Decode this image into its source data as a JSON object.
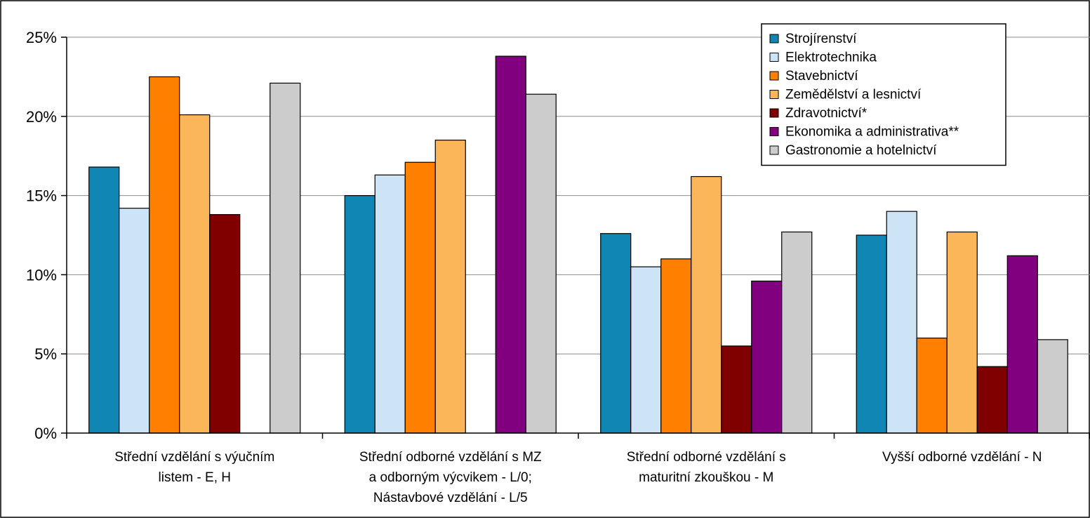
{
  "chart_data": {
    "type": "bar",
    "title": "",
    "xlabel": "",
    "ylabel": "",
    "ylim": [
      0,
      25
    ],
    "yticks": [
      "0%",
      "5%",
      "10%",
      "15%",
      "20%",
      "25%"
    ],
    "grid": true,
    "legend_position": "top-right",
    "categories": [
      [
        "Střední vzdělání s výučním",
        "listem - E, H"
      ],
      [
        "Střední odborné vzdělání s MZ",
        "a odborným výcvikem - L/0;",
        "Nástavbové vzdělání - L/5"
      ],
      [
        "Střední odborné vzdělání s",
        "maturitní zkouškou - M"
      ],
      [
        "Vyšší odborné vzdělání - N"
      ]
    ],
    "series": [
      {
        "name": "Strojírenství",
        "color": "#0f86b3",
        "values": [
          16.8,
          15.0,
          12.6,
          12.5
        ]
      },
      {
        "name": "Elektrotechnika",
        "color": "#cce4f6",
        "values": [
          14.2,
          16.3,
          10.5,
          14.0
        ]
      },
      {
        "name": "Stavebnictví",
        "color": "#ff8000",
        "values": [
          22.5,
          17.1,
          11.0,
          6.0
        ]
      },
      {
        "name": "Zemědělství a lesnictví",
        "color": "#fbb65a",
        "values": [
          20.1,
          18.5,
          16.2,
          12.7
        ]
      },
      {
        "name": "Zdravotnictví*",
        "color": "#800000",
        "values": [
          13.8,
          null,
          5.5,
          4.2
        ]
      },
      {
        "name": "Ekonomika a administrativa**",
        "color": "#800080",
        "values": [
          null,
          23.8,
          9.6,
          11.2
        ]
      },
      {
        "name": "Gastronomie a hotelnictví",
        "color": "#cccccc",
        "values": [
          22.1,
          21.4,
          12.7,
          5.9
        ]
      }
    ]
  }
}
